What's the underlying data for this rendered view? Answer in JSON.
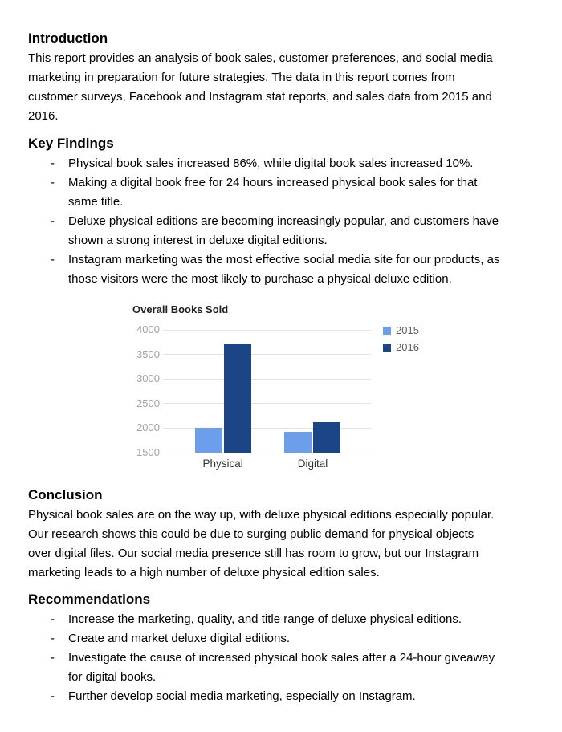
{
  "list_marker": "-",
  "document": {
    "introduction": {
      "heading": "Introduction",
      "body": "This report provides an analysis of book sales, customer preferences, and social media\nmarketing in preparation for future strategies. The data in this report comes from\ncustomer surveys, Facebook and Instagram stat reports, and sales data from 2015 and\n2016."
    },
    "key_findings": {
      "heading": "Key Findings",
      "bullets": [
        "Physical book sales increased 86%, while digital book sales increased 10%.",
        "Making a digital book free for 24 hours increased physical book sales for that\nsame title.",
        "Deluxe physical editions are becoming increasingly popular, and customers have\nshown a strong interest in deluxe digital editions.",
        "Instagram marketing was the most effective social media site for our products, as\nthose visitors were the most likely to purchase a physical deluxe edition."
      ]
    },
    "conclusion": {
      "heading": "Conclusion",
      "body": "Physical book sales are on the way up, with deluxe physical editions especially popular.\nOur research shows this could be due to surging public demand for physical objects\nover digital files. Our social media presence still has room to grow, but our Instagram\nmarketing leads to a high number of deluxe physical edition sales."
    },
    "recommendations": {
      "heading": "Recommendations",
      "bullets": [
        "Increase the marketing, quality, and title range of deluxe physical editions.",
        "Create and market deluxe digital editions.",
        "Investigate the cause of increased physical book sales after a 24-hour giveaway\nfor digital books.",
        "Further develop social media marketing, especially on Instagram."
      ]
    }
  },
  "chart_data": {
    "type": "bar",
    "title": "Overall Books Sold",
    "categories": [
      "Physical",
      "Digital"
    ],
    "series": [
      {
        "name": "2015",
        "color": "#6d9eeb",
        "values": [
          2000,
          1930
        ]
      },
      {
        "name": "2016",
        "color": "#1c4587",
        "values": [
          3720,
          2120
        ]
      }
    ],
    "ylim": [
      1500,
      4000
    ],
    "yticks": [
      1500,
      2000,
      2500,
      3000,
      3500,
      4000
    ],
    "grid": true,
    "legend_position": "right",
    "colors": {
      "grid": "#e3e3e3",
      "tick_label": "#a3a3a3",
      "category_label": "#333333",
      "title": "#212121",
      "legend_label": "#5f5f5f"
    }
  }
}
